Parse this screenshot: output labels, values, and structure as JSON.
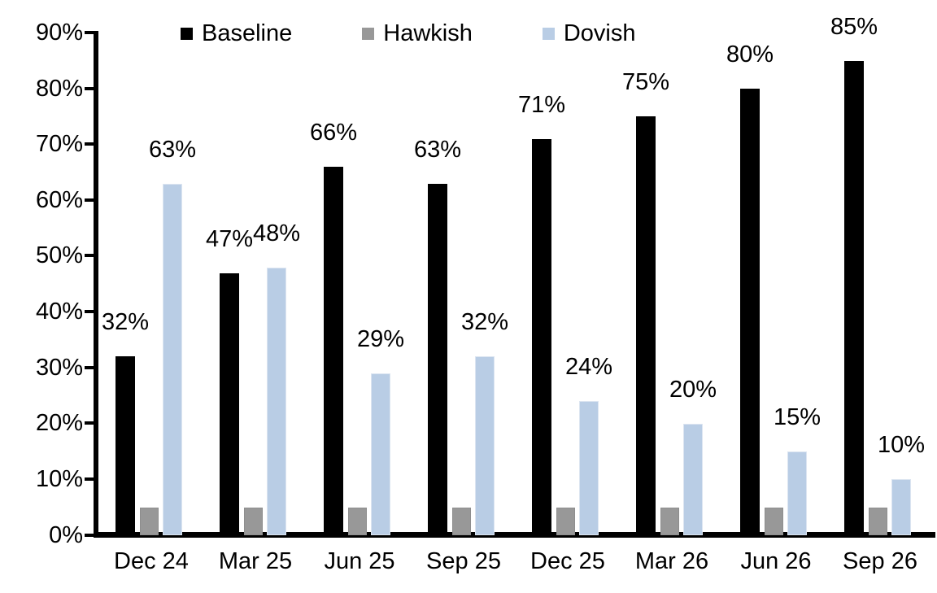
{
  "chart_data": {
    "type": "bar",
    "categories": [
      "Dec 24",
      "Mar 25",
      "Jun 25",
      "Sep 25",
      "Dec 25",
      "Mar 26",
      "Jun 26",
      "Sep 26"
    ],
    "series": [
      {
        "name": "Baseline",
        "color": "#000000",
        "border": "#000000",
        "values": [
          32,
          47,
          66,
          63,
          71,
          75,
          80,
          85
        ],
        "labels": [
          "32%",
          "47%",
          "66%",
          "63%",
          "71%",
          "75%",
          "80%",
          "85%"
        ]
      },
      {
        "name": "Hawkish",
        "color": "#989898",
        "border": "#8E8E8E",
        "values": [
          5,
          5,
          5,
          5,
          5,
          5,
          5,
          5
        ],
        "labels": [
          "",
          "",
          "",
          "",
          "",
          "",
          "",
          ""
        ]
      },
      {
        "name": "Dovish",
        "color": "#B9CDE5",
        "border": "#DCE5F1",
        "values": [
          63,
          48,
          29,
          32,
          24,
          20,
          15,
          10
        ],
        "labels": [
          "63%",
          "48%",
          "29%",
          "32%",
          "24%",
          "20%",
          "15%",
          "10%"
        ]
      }
    ],
    "title": "",
    "xlabel": "",
    "ylabel": "",
    "ylim": [
      0,
      90
    ],
    "yticks": [
      "0%",
      "10%",
      "20%",
      "30%",
      "40%",
      "50%",
      "60%",
      "70%",
      "80%",
      "90%"
    ],
    "grid": false,
    "legend_position": "top"
  }
}
